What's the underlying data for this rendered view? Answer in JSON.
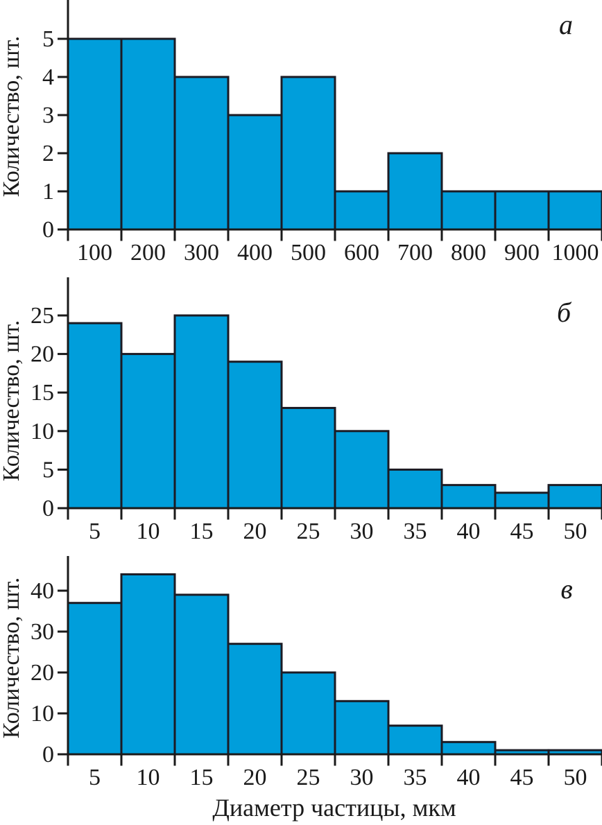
{
  "figure": {
    "title": "",
    "xlabel": "Диаметр частицы, мкм"
  },
  "colors": {
    "bar_fill": "#009EDB",
    "bar_stroke": "#1b1b24",
    "axis": "#1a1a1a",
    "text": "#1a1a1a"
  },
  "chart_data": [
    {
      "type": "bar",
      "panel_label": "а",
      "ylabel": "Количество, шт.",
      "xlabel": "",
      "categories": [
        "100",
        "200",
        "300",
        "400",
        "500",
        "600",
        "700",
        "800",
        "900",
        "1000"
      ],
      "values": [
        5,
        5,
        4,
        3,
        4,
        1,
        2,
        1,
        1,
        1
      ],
      "yticks": [
        0,
        1,
        2,
        3,
        4,
        5
      ],
      "ylim": [
        0,
        6
      ],
      "grid": false,
      "legend": "none"
    },
    {
      "type": "bar",
      "panel_label": "б",
      "ylabel": "Количество, шт.",
      "xlabel": "",
      "categories": [
        "5",
        "10",
        "15",
        "20",
        "25",
        "30",
        "35",
        "40",
        "45",
        "50"
      ],
      "values": [
        24,
        20,
        25,
        19,
        13,
        10,
        5,
        3,
        2,
        3
      ],
      "yticks": [
        0,
        5,
        10,
        15,
        20,
        25
      ],
      "ylim": [
        0,
        30
      ],
      "grid": false,
      "legend": "none"
    },
    {
      "type": "bar",
      "panel_label": "в",
      "ylabel": "Количество, шт.",
      "xlabel": "Диаметр частицы, мкм",
      "categories": [
        "5",
        "10",
        "15",
        "20",
        "25",
        "30",
        "35",
        "40",
        "45",
        "50"
      ],
      "values": [
        37,
        44,
        39,
        27,
        20,
        13,
        7,
        3,
        1,
        1
      ],
      "yticks": [
        0,
        10,
        20,
        30,
        40
      ],
      "ylim": [
        0,
        48
      ],
      "grid": false,
      "legend": "none"
    }
  ]
}
